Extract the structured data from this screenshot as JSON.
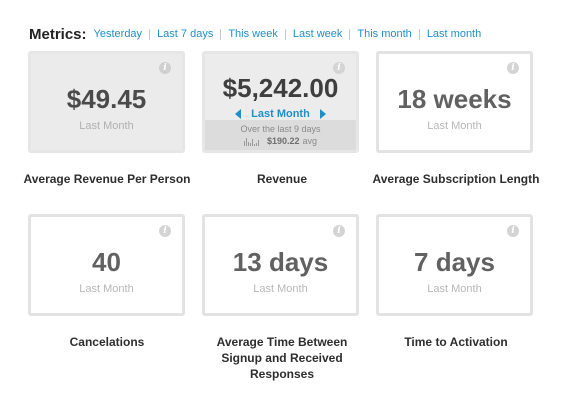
{
  "header": {
    "metrics_label": "Metrics:",
    "ranges": [
      "Yesterday",
      "Last 7 days",
      "This week",
      "Last week",
      "This month",
      "Last month"
    ]
  },
  "cards": [
    {
      "value": "$49.45",
      "period": "Last Month",
      "caption": "Average Revenue Per Person"
    },
    {
      "value": "$5,242.00",
      "period": "Last Month",
      "caption": "Revenue",
      "subtext": "Over the last 9 days",
      "avg_value": "$190.22",
      "avg_label": "avg"
    },
    {
      "value": "18 weeks",
      "period": "Last Month",
      "caption": "Average Subscription Length"
    },
    {
      "value": "40",
      "period": "Last Month",
      "caption": "Cancelations"
    },
    {
      "value": "13 days",
      "period": "Last Month",
      "caption": "Average Time Between Signup and Received Responses"
    },
    {
      "value": "7 days",
      "period": "Last Month",
      "caption": "Time to Activation"
    }
  ],
  "info_icon_glyph": "i",
  "colors": {
    "link": "#1f8fc8",
    "card_border": "#e3e3e3",
    "card_active_bg": "#ececec",
    "value_text": "#616161"
  }
}
